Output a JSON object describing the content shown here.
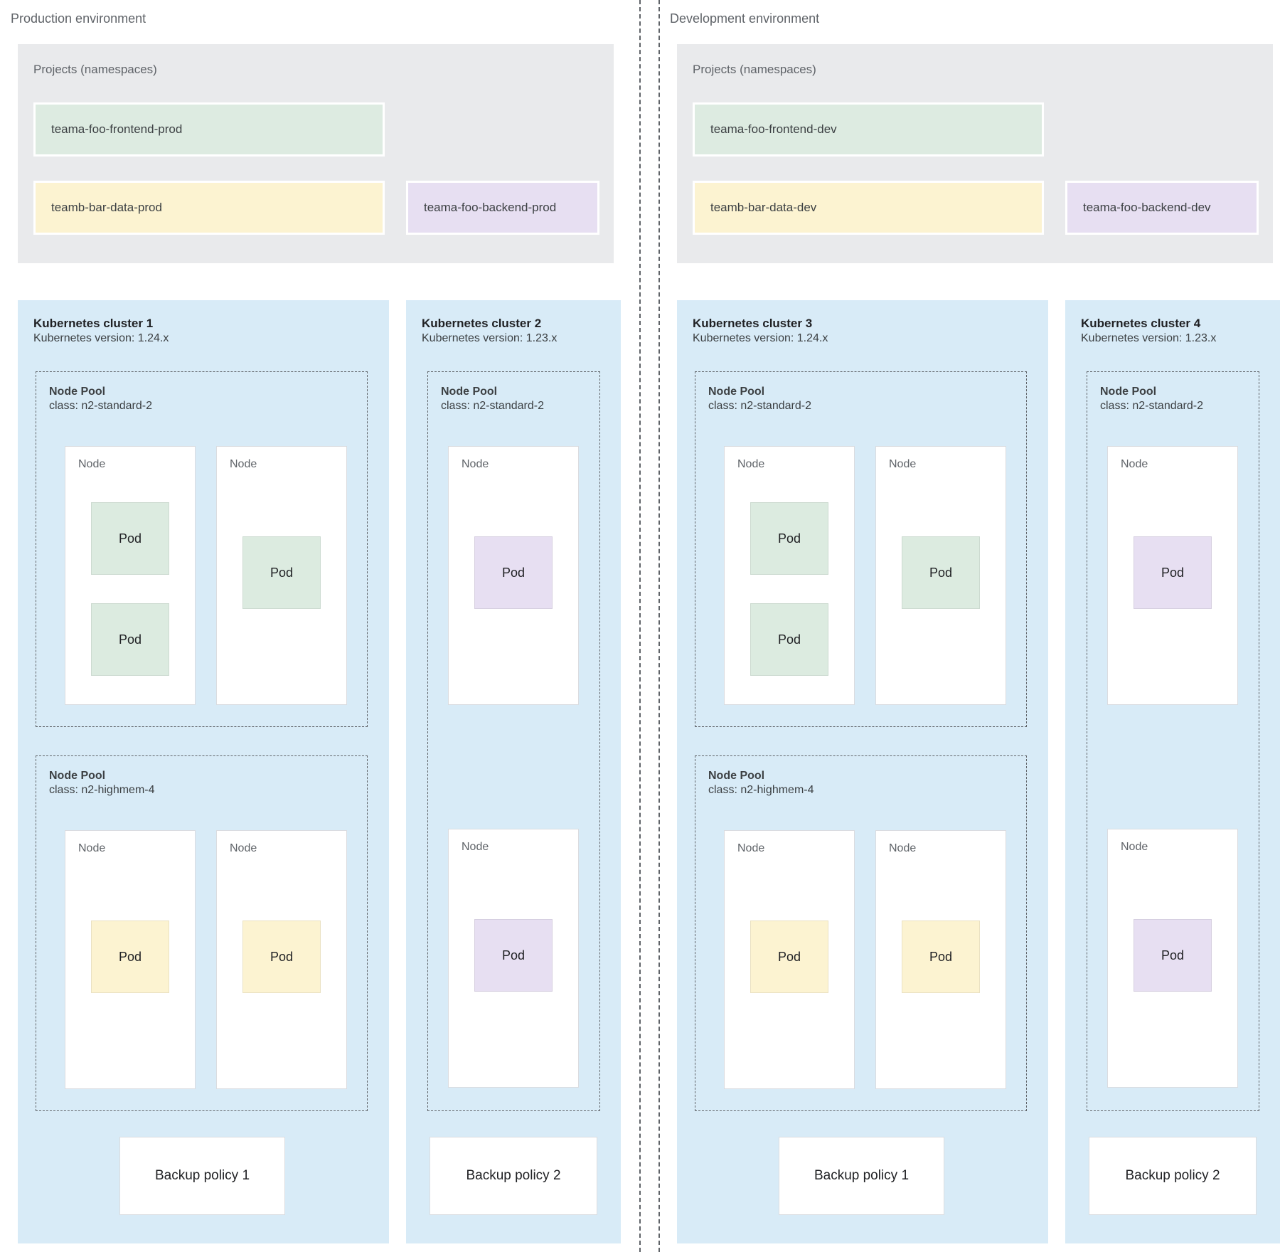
{
  "palette": {
    "green": "#ddebe1",
    "yellow": "#fcf3d1",
    "purple": "#e7dff2",
    "cluster_blue": "#d8ebf7",
    "projects_gray": "#e9eaec",
    "node_white": "#ffffff",
    "dashed_line": "#5f6368"
  },
  "environments": [
    {
      "label": "Production environment",
      "projects": {
        "title": "Projects (namespaces)",
        "namespaces": [
          {
            "label": "teama-foo-frontend-prod",
            "color": "green"
          },
          {
            "label": "teamb-bar-data-prod",
            "color": "yellow"
          },
          {
            "label": "teama-foo-backend-prod",
            "color": "purple"
          }
        ]
      },
      "clusters": [
        {
          "title": "Kubernetes cluster 1",
          "version": "Kubernetes version: 1.24.x",
          "backup_policy": "Backup policy 1",
          "node_pools": [
            {
              "title": "Node Pool",
              "machine_class": "class: n2-standard-2",
              "nodes": [
                {
                  "label": "Node",
                  "pods": [
                    {
                      "label": "Pod",
                      "color": "green"
                    },
                    {
                      "label": "Pod",
                      "color": "green"
                    }
                  ]
                },
                {
                  "label": "Node",
                  "pods": [
                    {
                      "label": "Pod",
                      "color": "green"
                    }
                  ]
                }
              ]
            },
            {
              "title": "Node Pool",
              "machine_class": "class: n2-highmem-4",
              "nodes": [
                {
                  "label": "Node",
                  "pods": [
                    {
                      "label": "Pod",
                      "color": "yellow"
                    }
                  ]
                },
                {
                  "label": "Node",
                  "pods": [
                    {
                      "label": "Pod",
                      "color": "yellow"
                    }
                  ]
                }
              ]
            }
          ]
        },
        {
          "title": "Kubernetes cluster 2",
          "version": "Kubernetes version: 1.23.x",
          "backup_policy": "Backup policy 2",
          "node_pools": [
            {
              "title": "Node Pool",
              "machine_class": "class: n2-standard-2",
              "nodes": [
                {
                  "label": "Node",
                  "pods": [
                    {
                      "label": "Pod",
                      "color": "purple"
                    }
                  ]
                },
                {
                  "label": "Node",
                  "pods": [
                    {
                      "label": "Pod",
                      "color": "purple"
                    }
                  ]
                }
              ]
            }
          ]
        }
      ]
    },
    {
      "label": "Development environment",
      "projects": {
        "title": "Projects (namespaces)",
        "namespaces": [
          {
            "label": "teama-foo-frontend-dev",
            "color": "green"
          },
          {
            "label": "teamb-bar-data-dev",
            "color": "yellow"
          },
          {
            "label": "teama-foo-backend-dev",
            "color": "purple"
          }
        ]
      },
      "clusters": [
        {
          "title": "Kubernetes cluster 3",
          "version": "Kubernetes version: 1.24.x",
          "backup_policy": "Backup policy 1",
          "node_pools": [
            {
              "title": "Node Pool",
              "machine_class": "class: n2-standard-2",
              "nodes": [
                {
                  "label": "Node",
                  "pods": [
                    {
                      "label": "Pod",
                      "color": "green"
                    },
                    {
                      "label": "Pod",
                      "color": "green"
                    }
                  ]
                },
                {
                  "label": "Node",
                  "pods": [
                    {
                      "label": "Pod",
                      "color": "green"
                    }
                  ]
                }
              ]
            },
            {
              "title": "Node Pool",
              "machine_class": "class: n2-highmem-4",
              "nodes": [
                {
                  "label": "Node",
                  "pods": [
                    {
                      "label": "Pod",
                      "color": "yellow"
                    }
                  ]
                },
                {
                  "label": "Node",
                  "pods": [
                    {
                      "label": "Pod",
                      "color": "yellow"
                    }
                  ]
                }
              ]
            }
          ]
        },
        {
          "title": "Kubernetes cluster 4",
          "version": "Kubernetes version: 1.23.x",
          "backup_policy": "Backup policy 2",
          "node_pools": [
            {
              "title": "Node Pool",
              "machine_class": "class: n2-standard-2",
              "nodes": [
                {
                  "label": "Node",
                  "pods": [
                    {
                      "label": "Pod",
                      "color": "purple"
                    }
                  ]
                },
                {
                  "label": "Node",
                  "pods": [
                    {
                      "label": "Pod",
                      "color": "purple"
                    }
                  ]
                }
              ]
            }
          ]
        }
      ]
    }
  ]
}
